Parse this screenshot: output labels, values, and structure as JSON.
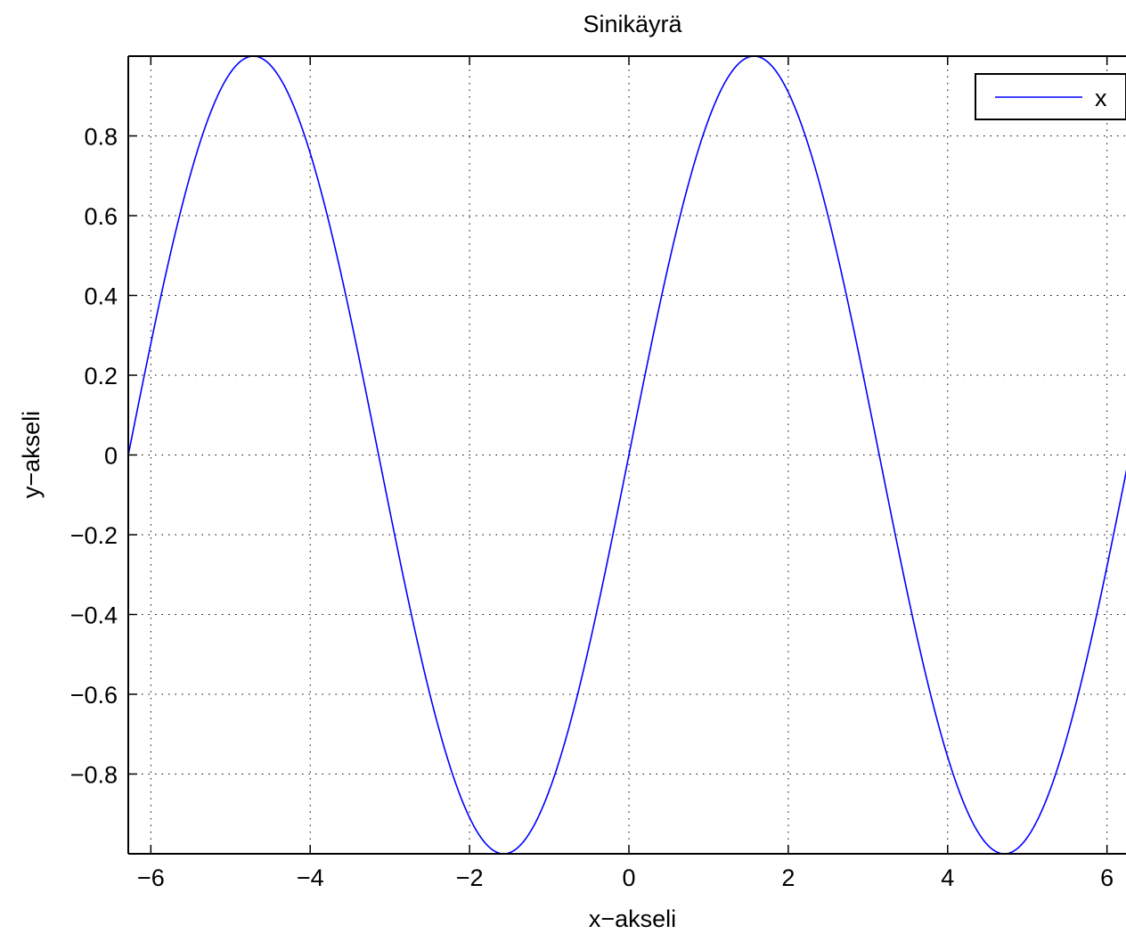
{
  "chart_data": {
    "type": "line",
    "title": "Sinikäyrä",
    "xlabel": "x−akseli",
    "ylabel": "y−akseli",
    "xlim": [
      -6.2832,
      6.2832
    ],
    "ylim": [
      -1,
      1
    ],
    "grid": true,
    "grid_style": "dotted",
    "legend": {
      "entries": [
        "x"
      ],
      "placement": "top-right"
    },
    "x_ticks": [
      -6,
      -4,
      -2,
      0,
      2,
      4,
      6
    ],
    "x_tick_labels": [
      "−6",
      "−4",
      "−2",
      "0",
      "2",
      "4",
      "6"
    ],
    "y_ticks": [
      0.8,
      0.6,
      0.4,
      0.2,
      0,
      -0.2,
      -0.4,
      -0.6,
      -0.8
    ],
    "y_tick_labels": [
      "0.8",
      "0.6",
      "0.4",
      "0.2",
      "0",
      "−0.2",
      "−0.4",
      "−0.6",
      "−0.8"
    ],
    "series": [
      {
        "name": "x",
        "color": "#0000ff",
        "function": "sin",
        "x": [
          -6.2832,
          -5.4978,
          -4.7124,
          -3.927,
          -3.1416,
          -2.3562,
          -1.5708,
          -0.7854,
          0,
          0.7854,
          1.5708,
          2.3562,
          3.1416,
          3.927,
          4.7124,
          5.4978,
          6.2832
        ],
        "y": [
          0,
          0.7071,
          1,
          0.7071,
          0,
          -0.7071,
          -1,
          -0.7071,
          0,
          0.7071,
          1,
          0.7071,
          0,
          -0.7071,
          -1,
          -0.7071,
          0
        ]
      }
    ]
  }
}
